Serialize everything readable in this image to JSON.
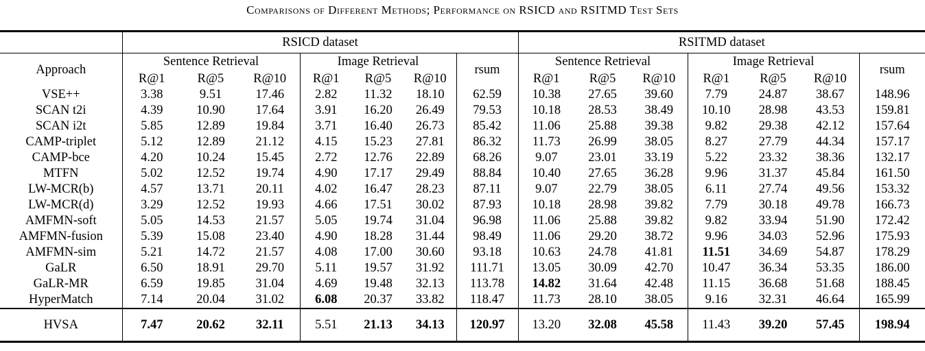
{
  "caption": "Comparisons of Different Methods; Performance on RSICD and RSITMD Test Sets",
  "colors": {
    "text": "#000000",
    "background": "#ffffff",
    "rule": "#000000"
  },
  "table": {
    "approach_header": "Approach",
    "dataset_headers": [
      "RSICD dataset",
      "RSITMD dataset"
    ],
    "group_headers": {
      "sentence": "Sentence Retrieval",
      "image": "Image Retrieval",
      "rsum": "rsum"
    },
    "metrics": [
      "R@1",
      "R@5",
      "R@10"
    ],
    "column_order_per_dataset": [
      "Sentence R@1",
      "Sentence R@5",
      "Sentence R@10",
      "Image R@1",
      "Image R@5",
      "Image R@10",
      "rsum"
    ],
    "rows": [
      {
        "approach": "VSE++",
        "values": [
          "3.38",
          "9.51",
          "17.46",
          "2.82",
          "11.32",
          "18.10",
          "62.59",
          "10.38",
          "27.65",
          "39.60",
          "7.79",
          "24.87",
          "38.67",
          "148.96"
        ],
        "bold": []
      },
      {
        "approach": "SCAN t2i",
        "values": [
          "4.39",
          "10.90",
          "17.64",
          "3.91",
          "16.20",
          "26.49",
          "79.53",
          "10.18",
          "28.53",
          "38.49",
          "10.10",
          "28.98",
          "43.53",
          "159.81"
        ],
        "bold": []
      },
      {
        "approach": "SCAN i2t",
        "values": [
          "5.85",
          "12.89",
          "19.84",
          "3.71",
          "16.40",
          "26.73",
          "85.42",
          "11.06",
          "25.88",
          "39.38",
          "9.82",
          "29.38",
          "42.12",
          "157.64"
        ],
        "bold": []
      },
      {
        "approach": "CAMP-triplet",
        "values": [
          "5.12",
          "12.89",
          "21.12",
          "4.15",
          "15.23",
          "27.81",
          "86.32",
          "11.73",
          "26.99",
          "38.05",
          "8.27",
          "27.79",
          "44.34",
          "157.17"
        ],
        "bold": []
      },
      {
        "approach": "CAMP-bce",
        "values": [
          "4.20",
          "10.24",
          "15.45",
          "2.72",
          "12.76",
          "22.89",
          "68.26",
          "9.07",
          "23.01",
          "33.19",
          "5.22",
          "23.32",
          "38.36",
          "132.17"
        ],
        "bold": []
      },
      {
        "approach": "MTFN",
        "values": [
          "5.02",
          "12.52",
          "19.74",
          "4.90",
          "17.17",
          "29.49",
          "88.84",
          "10.40",
          "27.65",
          "36.28",
          "9.96",
          "31.37",
          "45.84",
          "161.50"
        ],
        "bold": []
      },
      {
        "approach": "LW-MCR(b)",
        "values": [
          "4.57",
          "13.71",
          "20.11",
          "4.02",
          "16.47",
          "28.23",
          "87.11",
          "9.07",
          "22.79",
          "38.05",
          "6.11",
          "27.74",
          "49.56",
          "153.32"
        ],
        "bold": []
      },
      {
        "approach": "LW-MCR(d)",
        "values": [
          "3.29",
          "12.52",
          "19.93",
          "4.66",
          "17.51",
          "30.02",
          "87.93",
          "10.18",
          "28.98",
          "39.82",
          "7.79",
          "30.18",
          "49.78",
          "166.73"
        ],
        "bold": []
      },
      {
        "approach": "AMFMN-soft",
        "values": [
          "5.05",
          "14.53",
          "21.57",
          "5.05",
          "19.74",
          "31.04",
          "96.98",
          "11.06",
          "25.88",
          "39.82",
          "9.82",
          "33.94",
          "51.90",
          "172.42"
        ],
        "bold": []
      },
      {
        "approach": "AMFMN-fusion",
        "values": [
          "5.39",
          "15.08",
          "23.40",
          "4.90",
          "18.28",
          "31.44",
          "98.49",
          "11.06",
          "29.20",
          "38.72",
          "9.96",
          "34.03",
          "52.96",
          "175.93"
        ],
        "bold": []
      },
      {
        "approach": "AMFMN-sim",
        "values": [
          "5.21",
          "14.72",
          "21.57",
          "4.08",
          "17.00",
          "30.60",
          "93.18",
          "10.63",
          "24.78",
          "41.81",
          "11.51",
          "34.69",
          "54.87",
          "178.29"
        ],
        "bold": [
          10
        ]
      },
      {
        "approach": "GaLR",
        "values": [
          "6.50",
          "18.91",
          "29.70",
          "5.11",
          "19.57",
          "31.92",
          "111.71",
          "13.05",
          "30.09",
          "42.70",
          "10.47",
          "36.34",
          "53.35",
          "186.00"
        ],
        "bold": []
      },
      {
        "approach": "GaLR-MR",
        "values": [
          "6.59",
          "19.85",
          "31.04",
          "4.69",
          "19.48",
          "32.13",
          "113.78",
          "14.82",
          "31.64",
          "42.48",
          "11.15",
          "36.68",
          "51.68",
          "188.45"
        ],
        "bold": [
          7
        ]
      },
      {
        "approach": "HyperMatch",
        "values": [
          "7.14",
          "20.04",
          "31.02",
          "6.08",
          "20.37",
          "33.82",
          "118.47",
          "11.73",
          "28.10",
          "38.05",
          "9.16",
          "32.31",
          "46.64",
          "165.99"
        ],
        "bold": [
          3
        ]
      },
      {
        "approach": "HVSA",
        "values": [
          "7.47",
          "20.62",
          "32.11",
          "5.51",
          "21.13",
          "34.13",
          "120.97",
          "13.20",
          "32.08",
          "45.58",
          "11.43",
          "39.20",
          "57.45",
          "198.94"
        ],
        "bold": [
          0,
          1,
          2,
          4,
          5,
          6,
          8,
          9,
          11,
          12,
          13
        ],
        "final": true
      }
    ]
  }
}
